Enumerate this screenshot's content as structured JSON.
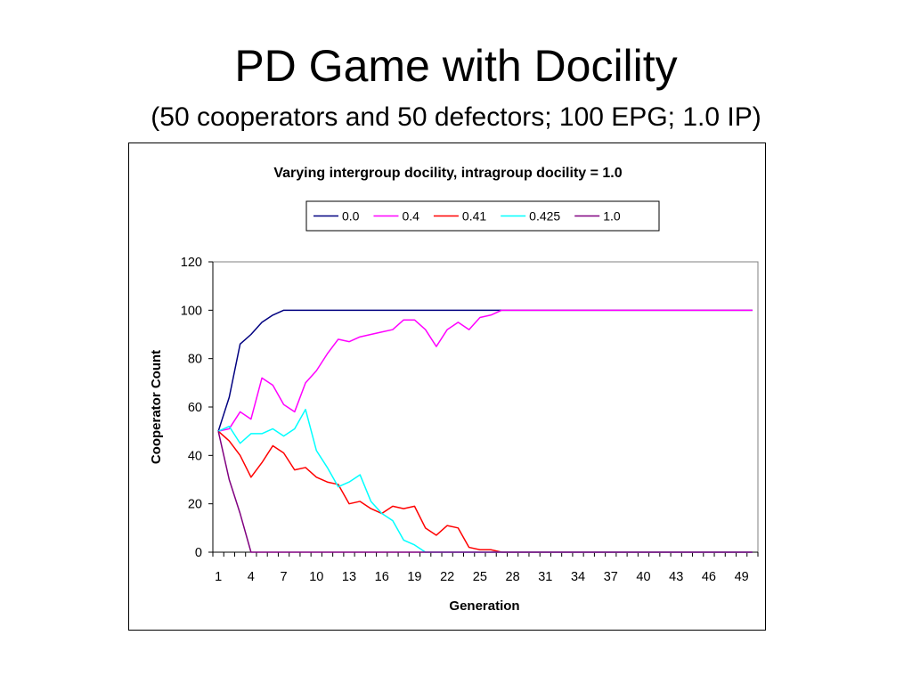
{
  "slide": {
    "title": "PD Game with Docility",
    "subtitle": "(50 cooperators and 50 defectors; 100 EPG; 1.0 IP)"
  },
  "chart_data": {
    "type": "line",
    "title": "Varying intergroup docility, intragroup docility = 1.0",
    "xlabel": "Generation",
    "ylabel": "Cooperator Count",
    "ylim": [
      0,
      120
    ],
    "yticks": [
      0,
      20,
      40,
      60,
      80,
      100,
      120
    ],
    "xlim": [
      1,
      50
    ],
    "x": [
      1,
      2,
      3,
      4,
      5,
      6,
      7,
      8,
      9,
      10,
      11,
      12,
      13,
      14,
      15,
      16,
      17,
      18,
      19,
      20,
      21,
      22,
      23,
      24,
      25,
      26,
      27,
      28,
      29,
      30,
      31,
      32,
      33,
      34,
      35,
      36,
      37,
      38,
      39,
      40,
      41,
      42,
      43,
      44,
      45,
      46,
      47,
      48,
      49,
      50
    ],
    "xtick_labels": [
      "1",
      "4",
      "7",
      "10",
      "13",
      "16",
      "19",
      "22",
      "25",
      "28",
      "31",
      "34",
      "37",
      "40",
      "43",
      "46",
      "49"
    ],
    "grid": false,
    "legend_position": "top",
    "series": [
      {
        "name": "0.0",
        "color": "#000080",
        "values": [
          50,
          64,
          86,
          90,
          95,
          98,
          100,
          100,
          100,
          100,
          100,
          100,
          100,
          100,
          100,
          100,
          100,
          100,
          100,
          100,
          100,
          100,
          100,
          100,
          100,
          100,
          100,
          100,
          100,
          100,
          100,
          100,
          100,
          100,
          100,
          100,
          100,
          100,
          100,
          100,
          100,
          100,
          100,
          100,
          100,
          100,
          100,
          100,
          100,
          100
        ]
      },
      {
        "name": "0.4",
        "color": "#ff00ff",
        "values": [
          50,
          51,
          58,
          55,
          72,
          69,
          61,
          58,
          70,
          75,
          82,
          88,
          87,
          89,
          90,
          91,
          92,
          96,
          96,
          92,
          85,
          92,
          95,
          92,
          97,
          98,
          100,
          100,
          100,
          100,
          100,
          100,
          100,
          100,
          100,
          100,
          100,
          100,
          100,
          100,
          100,
          100,
          100,
          100,
          100,
          100,
          100,
          100,
          100,
          100
        ]
      },
      {
        "name": "0.41",
        "color": "#ff0000",
        "values": [
          50,
          46,
          40,
          31,
          37,
          44,
          41,
          34,
          35,
          31,
          29,
          28,
          20,
          21,
          18,
          16,
          19,
          18,
          19,
          10,
          7,
          11,
          10,
          2,
          1,
          1,
          0,
          0,
          0,
          0,
          0,
          0,
          0,
          0,
          0,
          0,
          0,
          0,
          0,
          0,
          0,
          0,
          0,
          0,
          0,
          0,
          0,
          0,
          0,
          0
        ]
      },
      {
        "name": "0.425",
        "color": "#00ffff",
        "values": [
          50,
          52,
          45,
          49,
          49,
          51,
          48,
          51,
          59,
          42,
          35,
          27,
          29,
          32,
          21,
          16,
          13,
          5,
          3,
          0,
          0,
          0,
          0,
          0,
          0,
          0,
          0,
          0,
          0,
          0,
          0,
          0,
          0,
          0,
          0,
          0,
          0,
          0,
          0,
          0,
          0,
          0,
          0,
          0,
          0,
          0,
          0,
          0,
          0,
          0
        ]
      },
      {
        "name": "1.0",
        "color": "#800080",
        "values": [
          50,
          30,
          16,
          0,
          0,
          0,
          0,
          0,
          0,
          0,
          0,
          0,
          0,
          0,
          0,
          0,
          0,
          0,
          0,
          0,
          0,
          0,
          0,
          0,
          0,
          0,
          0,
          0,
          0,
          0,
          0,
          0,
          0,
          0,
          0,
          0,
          0,
          0,
          0,
          0,
          0,
          0,
          0,
          0,
          0,
          0,
          0,
          0,
          0,
          0
        ]
      }
    ]
  }
}
